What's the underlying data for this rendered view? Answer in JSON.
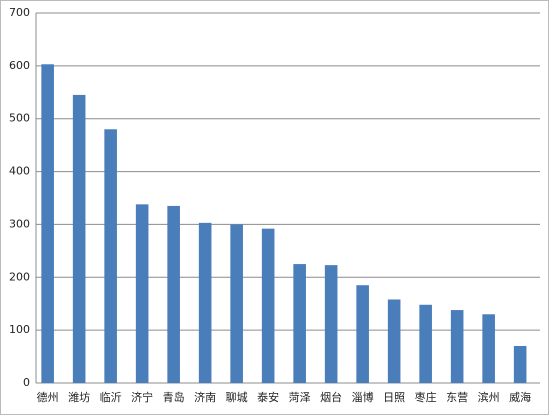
{
  "chart_data": {
    "type": "bar",
    "categories": [
      "德州",
      "潍坊",
      "临沂",
      "济宁",
      "青岛",
      "济南",
      "聊城",
      "泰安",
      "菏泽",
      "烟台",
      "淄博",
      "日照",
      "枣庄",
      "东营",
      "滨州",
      "威海"
    ],
    "values": [
      603,
      545,
      480,
      338,
      335,
      303,
      300,
      292,
      225,
      223,
      185,
      158,
      148,
      138,
      130,
      70
    ],
    "color": "#4a7ebb",
    "ylim": [
      0,
      700
    ],
    "yticks": [
      0,
      100,
      200,
      300,
      400,
      500,
      600,
      700
    ],
    "grid": true
  }
}
